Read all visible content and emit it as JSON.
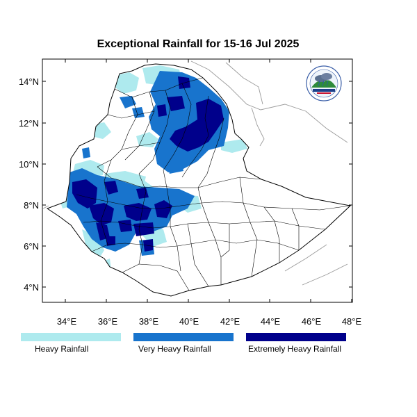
{
  "map": {
    "title": "Exceptional Rainfall for 15-16 Jul 2025",
    "lat_ticks": [
      "14°N",
      "12°N",
      "10°N",
      "8°N",
      "6°N",
      "4°N"
    ],
    "lon_ticks": [
      "34°E",
      "36°E",
      "38°E",
      "40°E",
      "42°E",
      "44°E",
      "46°E",
      "48°E"
    ],
    "colors": {
      "heavy": "#aeeaee",
      "very_heavy": "#1874cd",
      "extremely_heavy": "#00008b",
      "border": "#000000",
      "neighbor_border": "#9a9a9a"
    },
    "legend": [
      {
        "label": "Heavy Rainfall",
        "color": "#aeeaee"
      },
      {
        "label": "Very Heavy Rainfall",
        "color": "#1874cd"
      },
      {
        "label": "Extremely Heavy Rainfall",
        "color": "#00008b"
      }
    ],
    "logo_icon": "ethiopian-meteorology-institute-logo"
  }
}
